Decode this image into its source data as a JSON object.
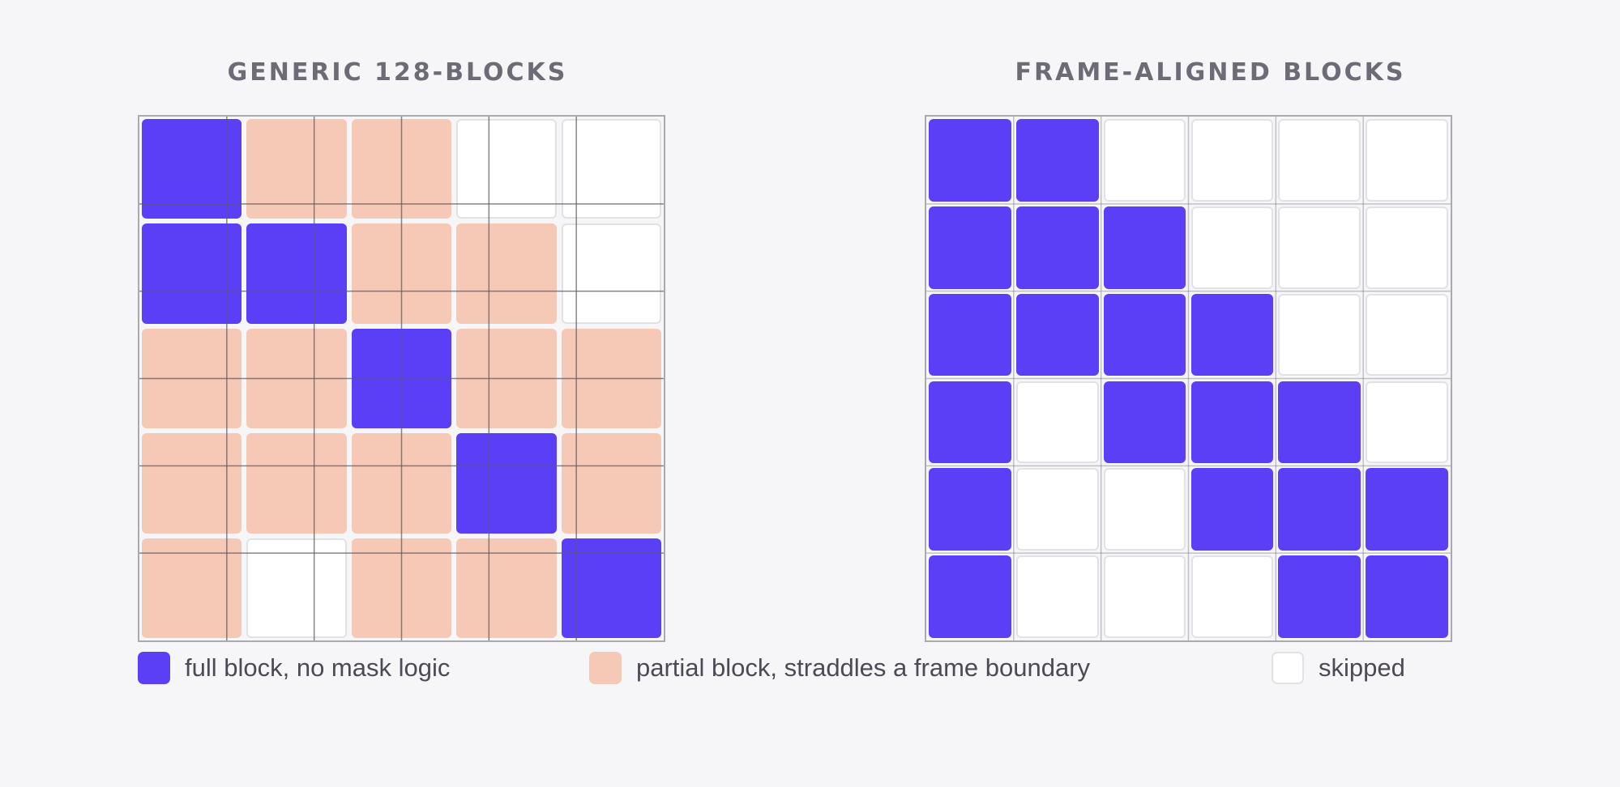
{
  "colors": {
    "full": "#5b3ff6",
    "partial": "#f6c8b6",
    "skipped": "#ffffff",
    "grid_line": "#5c5c66",
    "title": "#6c6b76",
    "background": "#f6f6f9"
  },
  "panels": [
    {
      "title": "GENERIC 128-BLOCKS",
      "rows": 5,
      "cols": 5,
      "frame_divisions": 6,
      "cells": [
        [
          "full",
          "partial",
          "partial",
          "skipped",
          "skipped"
        ],
        [
          "full",
          "full",
          "partial",
          "partial",
          "skipped"
        ],
        [
          "partial",
          "partial",
          "full",
          "partial",
          "partial"
        ],
        [
          "partial",
          "partial",
          "partial",
          "full",
          "partial"
        ],
        [
          "partial",
          "skipped",
          "partial",
          "partial",
          "full"
        ]
      ]
    },
    {
      "title": "FRAME-ALIGNED BLOCKS",
      "rows": 6,
      "cols": 6,
      "frame_divisions": 6,
      "cells": [
        [
          "full",
          "full",
          "skipped",
          "skipped",
          "skipped",
          "skipped"
        ],
        [
          "full",
          "full",
          "full",
          "skipped",
          "skipped",
          "skipped"
        ],
        [
          "full",
          "full",
          "full",
          "full",
          "skipped",
          "skipped"
        ],
        [
          "full",
          "skipped",
          "full",
          "full",
          "full",
          "skipped"
        ],
        [
          "full",
          "skipped",
          "skipped",
          "full",
          "full",
          "full"
        ],
        [
          "full",
          "skipped",
          "skipped",
          "skipped",
          "full",
          "full"
        ]
      ]
    }
  ],
  "legend": [
    {
      "type": "full",
      "label": "full block, no mask logic"
    },
    {
      "type": "partial",
      "label": "partial block, straddles a frame boundary"
    },
    {
      "type": "skipped",
      "label": "skipped"
    }
  ]
}
